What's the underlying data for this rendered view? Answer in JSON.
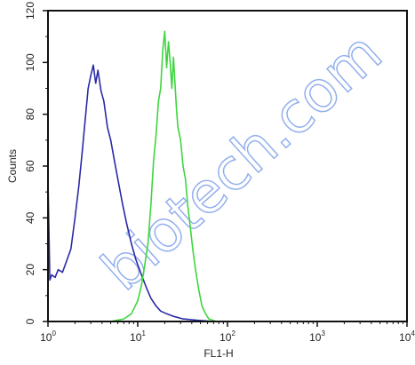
{
  "chart_data": {
    "type": "line",
    "title": "",
    "xlabel": "FL1-H",
    "ylabel": "Counts",
    "xscale": "log",
    "xlim": [
      1,
      10000
    ],
    "ylim": [
      0,
      120
    ],
    "xticks": [
      {
        "value": 1,
        "base": "10",
        "exp": "0"
      },
      {
        "value": 10,
        "base": "10",
        "exp": "1"
      },
      {
        "value": 100,
        "base": "10",
        "exp": "2"
      },
      {
        "value": 1000,
        "base": "10",
        "exp": "3"
      },
      {
        "value": 10000,
        "base": "10",
        "exp": "4"
      }
    ],
    "yticks": [
      "0",
      "20",
      "40",
      "60",
      "80",
      "100",
      "120"
    ],
    "grid": false,
    "series": [
      {
        "color": "#2a2aa8",
        "x": [
          1.0,
          1.05,
          1.1,
          1.2,
          1.3,
          1.45,
          1.6,
          1.8,
          2.0,
          2.2,
          2.4,
          2.6,
          2.8,
          3.0,
          3.2,
          3.4,
          3.6,
          3.9,
          4.2,
          4.6,
          5.0,
          5.5,
          6.0,
          6.8,
          7.5,
          8.5,
          9.5,
          11,
          12.5,
          14,
          16,
          18,
          21,
          25,
          32,
          45,
          70,
          120,
          1000,
          10000
        ],
        "y": [
          55,
          16,
          18,
          17,
          20,
          19,
          23,
          28,
          40,
          52,
          65,
          78,
          90,
          95,
          99,
          92,
          97,
          89,
          85,
          75,
          70,
          62,
          55,
          45,
          38,
          30,
          24,
          18,
          13,
          9,
          6,
          4,
          3,
          2,
          1,
          0.5,
          0,
          0,
          0,
          0
        ]
      },
      {
        "color": "#3ed63e",
        "x": [
          1,
          5,
          7,
          8.5,
          10,
          11,
          12,
          13,
          14,
          15,
          16,
          17,
          18,
          19,
          20,
          21,
          22,
          23,
          24,
          25,
          26,
          27,
          28,
          30,
          32,
          34,
          36,
          38,
          41,
          44,
          48,
          52,
          57,
          62,
          68,
          75,
          85,
          100,
          120,
          1000,
          10000
        ],
        "y": [
          0,
          0,
          1,
          3,
          8,
          14,
          22,
          30,
          45,
          62,
          72,
          85,
          90,
          105,
          112,
          98,
          108,
          100,
          90,
          102,
          92,
          82,
          75,
          70,
          60,
          55,
          45,
          38,
          28,
          20,
          12,
          6,
          3,
          1,
          0.5,
          0,
          0,
          0,
          0,
          0,
          0
        ]
      }
    ]
  },
  "watermark": {
    "text": "biotech.com",
    "color": "#3a6ee0"
  }
}
